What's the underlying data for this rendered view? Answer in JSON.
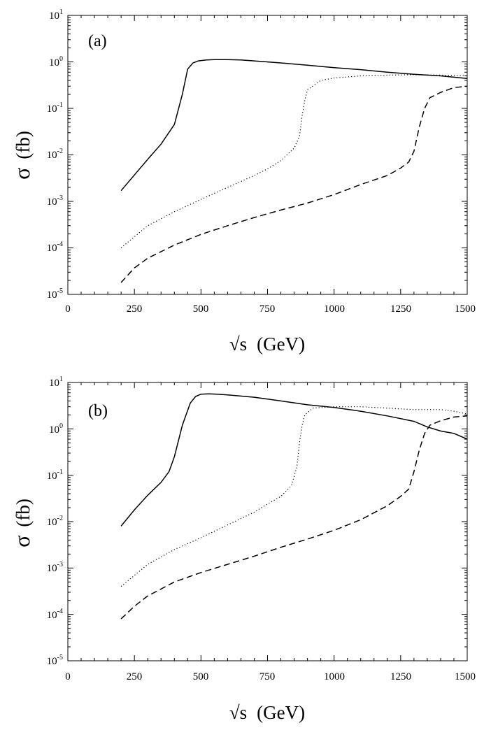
{
  "figure_title": "",
  "chart_data": [
    {
      "type": "line",
      "panel_label": "(a)",
      "title": "",
      "xlabel_prefix": "√s",
      "xlabel_unit": "(GeV)",
      "ylabel_symbol": "σ",
      "ylabel_unit": "(fb)",
      "xlim": [
        0,
        1500
      ],
      "ylim": [
        1e-05,
        10
      ],
      "yscale": "log",
      "grid": false,
      "legend": "none",
      "xticks": [
        0,
        250,
        500,
        750,
        1000,
        1250,
        1500
      ],
      "xtick_labels": [
        "0",
        "250",
        "500",
        "750",
        "1000",
        "1250",
        "1500"
      ],
      "yticks": [
        1e-05,
        0.0001,
        0.001,
        0.01,
        0.1,
        1,
        10
      ],
      "ytick_base": "10",
      "ytick_exponents": [
        "-5",
        "-4",
        "-3",
        "-2",
        "-1",
        "0",
        "1"
      ],
      "series": [
        {
          "name": "solid",
          "style": "solid",
          "x": [
            200,
            250,
            300,
            350,
            400,
            430,
            450,
            470,
            490,
            520,
            550,
            600,
            650,
            700,
            800,
            900,
            1000,
            1100,
            1200,
            1300,
            1400,
            1500
          ],
          "y": [
            0.0017,
            0.0037,
            0.008,
            0.017,
            0.045,
            0.2,
            0.7,
            0.95,
            1.05,
            1.1,
            1.12,
            1.12,
            1.1,
            1.05,
            0.95,
            0.85,
            0.75,
            0.68,
            0.6,
            0.54,
            0.5,
            0.44
          ]
        },
        {
          "name": "dotted",
          "style": "dotted",
          "x": [
            200,
            300,
            400,
            500,
            600,
            700,
            750,
            800,
            850,
            870,
            880,
            890,
            900,
            950,
            1000,
            1100,
            1200,
            1300,
            1400,
            1500
          ],
          "y": [
            0.0001,
            0.0003,
            0.0006,
            0.0011,
            0.002,
            0.0036,
            0.005,
            0.0075,
            0.014,
            0.025,
            0.07,
            0.15,
            0.25,
            0.4,
            0.45,
            0.5,
            0.52,
            0.53,
            0.52,
            0.5
          ]
        },
        {
          "name": "dashed",
          "style": "dashed",
          "x": [
            200,
            250,
            300,
            400,
            500,
            600,
            700,
            800,
            900,
            1000,
            1100,
            1200,
            1250,
            1280,
            1300,
            1320,
            1340,
            1360,
            1400,
            1450,
            1500
          ],
          "y": [
            1.8e-05,
            3.7e-05,
            6e-05,
            0.000115,
            0.000195,
            0.0003,
            0.00045,
            0.00065,
            0.00092,
            0.0014,
            0.0023,
            0.0036,
            0.0052,
            0.007,
            0.012,
            0.04,
            0.1,
            0.17,
            0.22,
            0.28,
            0.3
          ]
        }
      ]
    },
    {
      "type": "line",
      "panel_label": "(b)",
      "title": "",
      "xlabel_prefix": "√s",
      "xlabel_unit": "(GeV)",
      "ylabel_symbol": "σ",
      "ylabel_unit": "(fb)",
      "xlim": [
        0,
        1500
      ],
      "ylim": [
        1e-05,
        10
      ],
      "yscale": "log",
      "grid": false,
      "legend": "none",
      "xticks": [
        0,
        250,
        500,
        750,
        1000,
        1250,
        1500
      ],
      "xtick_labels": [
        "0",
        "250",
        "500",
        "750",
        "1000",
        "1250",
        "1500"
      ],
      "yticks": [
        1e-05,
        0.0001,
        0.001,
        0.01,
        0.1,
        1,
        10
      ],
      "ytick_base": "10",
      "ytick_exponents": [
        "-5",
        "-4",
        "-3",
        "-2",
        "-1",
        "0",
        "1"
      ],
      "series": [
        {
          "name": "solid",
          "style": "solid",
          "x": [
            200,
            250,
            300,
            350,
            380,
            400,
            430,
            460,
            480,
            500,
            530,
            560,
            600,
            700,
            800,
            900,
            1000,
            1100,
            1200,
            1300,
            1350,
            1400,
            1450,
            1500
          ],
          "y": [
            0.008,
            0.018,
            0.037,
            0.07,
            0.12,
            0.25,
            1.2,
            3.6,
            5.0,
            5.6,
            5.7,
            5.6,
            5.4,
            4.8,
            4.0,
            3.3,
            2.9,
            2.4,
            1.9,
            1.45,
            1.1,
            0.9,
            0.8,
            0.6
          ]
        },
        {
          "name": "dotted",
          "style": "dotted",
          "x": [
            200,
            300,
            400,
            500,
            600,
            700,
            750,
            800,
            840,
            860,
            870,
            880,
            890,
            920,
            1000,
            1100,
            1200,
            1300,
            1400,
            1450,
            1500
          ],
          "y": [
            0.0004,
            0.0012,
            0.0025,
            0.0045,
            0.0085,
            0.016,
            0.024,
            0.035,
            0.06,
            0.15,
            0.5,
            1.2,
            2.0,
            2.8,
            3.0,
            3.0,
            2.8,
            2.6,
            2.6,
            2.4,
            2.1
          ]
        },
        {
          "name": "dashed",
          "style": "dashed",
          "x": [
            200,
            250,
            300,
            400,
            500,
            600,
            700,
            800,
            900,
            1000,
            1100,
            1200,
            1250,
            1280,
            1300,
            1320,
            1340,
            1360,
            1400,
            1450,
            1500
          ],
          "y": [
            8e-05,
            0.00015,
            0.00025,
            0.0005,
            0.0008,
            0.0012,
            0.0018,
            0.0028,
            0.0042,
            0.0065,
            0.011,
            0.022,
            0.035,
            0.05,
            0.12,
            0.35,
            0.8,
            1.2,
            1.5,
            1.8,
            1.9
          ]
        }
      ]
    }
  ]
}
